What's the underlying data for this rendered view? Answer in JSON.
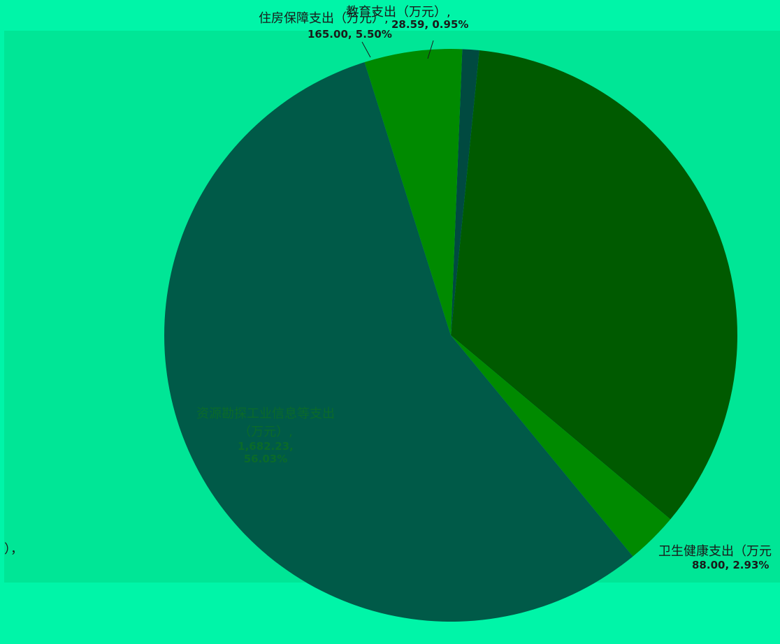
{
  "colors": {
    "page": "#00f5a8",
    "plot_area": "#00e696",
    "slice_dark_green": "#005a00",
    "slice_teal": "#005a48",
    "slice_green": "#008a00",
    "slice_deep": "#004a40",
    "slice_bottom": "#007a6a"
  },
  "chart_data": {
    "type": "pie",
    "title": "",
    "slices": [
      {
        "label": "教育支出（万元）",
        "value": 28.59,
        "percent": "0.95%",
        "value_text": "28.59, 0.95%"
      },
      {
        "label": "",
        "value": 1035.12,
        "percent": "34.49%",
        "value_text": ""
      },
      {
        "label": "卫生健康支出（万元）",
        "value": 88.0,
        "percent": "2.93%",
        "value_text": "88.00, 2.93%"
      },
      {
        "label": "资源勘探工业信息等支出（万元）",
        "value": 1682.23,
        "percent": "56.03%",
        "value_text": "1,682.23, 56.03%"
      },
      {
        "label": "住房保障支出（万元）",
        "value": 165.0,
        "percent": "5.50%",
        "value_text": "165.00, 5.50%"
      }
    ]
  },
  "labels": {
    "housing_name": "住房保障支出（万元）,",
    "housing_value": "165.00, 5.50%",
    "education_name": "教育支出（万元）,",
    "education_value": "28.59, 0.95%",
    "health_name": "卫生健康支出（万元",
    "health_value": "88.00, 2.93%",
    "resource_name": "资源勘探工业信息等支出（万元）,",
    "resource_value_line": "1,682.23,",
    "resource_percent": "56.03%",
    "left_fragment": "），"
  }
}
